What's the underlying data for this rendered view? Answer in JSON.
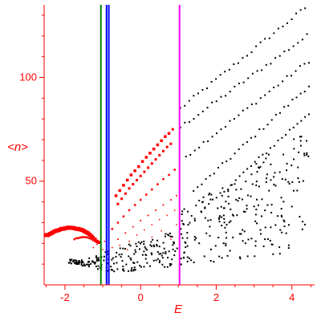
{
  "chart_data": {
    "type": "scatter",
    "title": "",
    "xlabel": "E",
    "ylabel": "<n>",
    "xlim": [
      -2.55,
      4.6
    ],
    "ylim": [
      0,
      135
    ],
    "x_ticks": [
      "-2",
      "0",
      "2",
      "4"
    ],
    "y_ticks": [
      "50",
      "100"
    ],
    "grid": false,
    "axis_color": "#ff0000",
    "vertical_lines": [
      {
        "x": -1.05,
        "color": "#008000"
      },
      {
        "x": -0.9,
        "color": "#0000ff"
      },
      {
        "x": -0.84,
        "color": "#0000ff"
      },
      {
        "x": 1.03,
        "color": "#ff00ff"
      }
    ],
    "red_points": [
      [
        -2.5,
        24,
        5
      ],
      [
        -2.45,
        24,
        5
      ],
      [
        -2.4,
        24.5,
        5
      ],
      [
        -2.35,
        25,
        5
      ],
      [
        -2.3,
        25.5,
        5
      ],
      [
        -2.25,
        26,
        5
      ],
      [
        -2.2,
        26.2,
        5
      ],
      [
        -2.15,
        26.5,
        5
      ],
      [
        -2.1,
        27,
        5
      ],
      [
        -2.05,
        27,
        5
      ],
      [
        -2.0,
        27.2,
        5
      ],
      [
        -1.95,
        27.5,
        5
      ],
      [
        -1.9,
        27.6,
        5
      ],
      [
        -1.85,
        27.5,
        5
      ],
      [
        -1.8,
        27.5,
        5
      ],
      [
        -1.75,
        27.3,
        5
      ],
      [
        -1.7,
        27,
        5
      ],
      [
        -1.65,
        27,
        5
      ],
      [
        -1.6,
        26.7,
        5
      ],
      [
        -1.55,
        26.5,
        5
      ],
      [
        -1.5,
        26,
        5
      ],
      [
        -1.45,
        25.5,
        5
      ],
      [
        -1.4,
        25,
        5
      ],
      [
        -1.35,
        24.3,
        5
      ],
      [
        -1.3,
        23.5,
        5
      ],
      [
        -1.25,
        22.8,
        4
      ],
      [
        -1.2,
        22,
        4
      ],
      [
        -1.15,
        21,
        4
      ],
      [
        -1.1,
        20.5,
        4
      ],
      [
        -1.75,
        22,
        2.5
      ],
      [
        -1.7,
        22.5,
        2.5
      ],
      [
        -1.65,
        22.5,
        2.5
      ],
      [
        -1.6,
        22.8,
        2.5
      ],
      [
        -1.55,
        23,
        2.5
      ],
      [
        -1.5,
        23,
        2.5
      ],
      [
        -1.45,
        23,
        2.5
      ],
      [
        -1.4,
        22.8,
        2.5
      ],
      [
        -1.35,
        22.5,
        2.5
      ],
      [
        -1.3,
        22,
        2.5
      ],
      [
        -1.25,
        21.5,
        2.5
      ],
      [
        -1.2,
        21,
        2.5
      ],
      [
        -1.15,
        20.5,
        2.5
      ],
      [
        -0.65,
        43,
        3.5
      ],
      [
        -0.55,
        45.5,
        3.5
      ],
      [
        -0.45,
        48,
        3.5
      ],
      [
        -0.35,
        50.5,
        3.5
      ],
      [
        -0.25,
        53,
        3.5
      ],
      [
        -0.15,
        55,
        3.5
      ],
      [
        -0.05,
        57,
        3.5
      ],
      [
        0.05,
        59.5,
        3.5
      ],
      [
        0.15,
        61.5,
        3.5
      ],
      [
        0.25,
        63.5,
        3.5
      ],
      [
        0.35,
        65.5,
        3.5
      ],
      [
        0.45,
        67.5,
        3.5
      ],
      [
        0.55,
        69.5,
        3.5
      ],
      [
        0.65,
        71.5,
        3.5
      ],
      [
        0.75,
        73,
        3.5
      ],
      [
        0.85,
        75,
        3
      ],
      [
        -0.6,
        39,
        3
      ],
      [
        -0.5,
        41.5,
        3
      ],
      [
        -0.4,
        44,
        3
      ],
      [
        -0.3,
        46.5,
        3
      ],
      [
        -0.2,
        48.5,
        3
      ],
      [
        -0.1,
        50.5,
        3
      ],
      [
        0.0,
        52.5,
        3
      ],
      [
        0.1,
        54.5,
        3
      ],
      [
        0.2,
        56.5,
        3
      ],
      [
        0.3,
        58.5,
        3
      ],
      [
        0.4,
        60.5,
        3
      ],
      [
        0.5,
        62.5,
        3
      ],
      [
        0.6,
        64.5,
        3
      ],
      [
        0.7,
        66.5,
        3
      ],
      [
        0.8,
        68,
        3
      ],
      [
        -0.75,
        27,
        2.5
      ],
      [
        -0.6,
        30,
        2.5
      ],
      [
        -0.45,
        33,
        2.5
      ],
      [
        -0.3,
        36,
        2.5
      ],
      [
        -0.15,
        38.5,
        2.5
      ],
      [
        0.0,
        41,
        2.5
      ],
      [
        0.15,
        43.5,
        2.5
      ],
      [
        0.3,
        46,
        2.5
      ],
      [
        0.45,
        48.5,
        2.5
      ],
      [
        0.6,
        51,
        2.5
      ],
      [
        0.75,
        53,
        2.5
      ],
      [
        0.9,
        55.5,
        2.5
      ],
      [
        -0.6,
        22,
        1.8
      ],
      [
        -0.4,
        25,
        1.8
      ],
      [
        -0.2,
        28,
        1.8
      ],
      [
        0.0,
        31,
        1.8
      ],
      [
        0.2,
        33.5,
        1.8
      ],
      [
        0.4,
        36,
        1.8
      ],
      [
        0.6,
        38.5,
        1.8
      ],
      [
        0.8,
        41,
        1.8
      ],
      [
        0.95,
        43,
        1.8
      ],
      [
        -0.3,
        21,
        1.5
      ],
      [
        -0.1,
        24,
        1.5
      ],
      [
        0.1,
        26.5,
        1.5
      ],
      [
        0.3,
        29,
        1.5
      ],
      [
        0.5,
        31.5,
        1.5
      ],
      [
        0.7,
        33.5,
        1.5
      ],
      [
        0.9,
        36,
        1.5
      ],
      [
        -1.25,
        18,
        1.5
      ],
      [
        -1.15,
        19.5,
        1.5
      ],
      [
        -1.0,
        17,
        1.5
      ],
      [
        -0.95,
        21,
        1.5
      ],
      [
        -0.85,
        16,
        1.5
      ],
      [
        -0.75,
        18,
        1.5
      ],
      [
        -0.55,
        19,
        1.5
      ],
      [
        -0.35,
        17,
        1.5
      ],
      [
        0.3,
        23,
        1.5
      ],
      [
        0.55,
        26,
        1.5
      ],
      [
        0.8,
        22,
        1.5
      ],
      [
        0.95,
        29,
        1.5
      ]
    ],
    "black_rays": [
      {
        "x0": 1.05,
        "y0": 85,
        "x1": 4.35,
        "y1": 133.5
      },
      {
        "x0": 1.05,
        "y0": 76,
        "x1": 4.4,
        "y1": 120
      },
      {
        "x0": 1.2,
        "y0": 62,
        "x1": 4.45,
        "y1": 108
      },
      {
        "x0": 1.4,
        "y0": 45,
        "x1": 4.45,
        "y1": 96
      },
      {
        "x0": 1.6,
        "y0": 35,
        "x1": 4.45,
        "y1": 83
      }
    ]
  }
}
